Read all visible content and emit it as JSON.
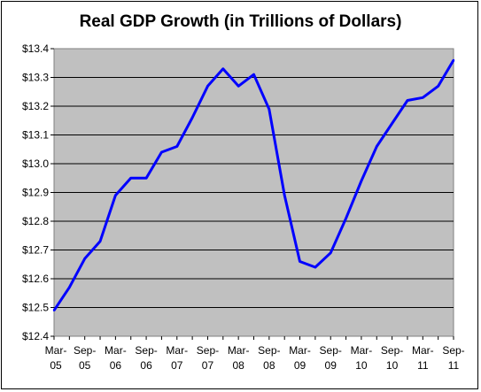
{
  "chart_data": {
    "type": "line",
    "title": "Real GDP Growth (in Trillions of Dollars)",
    "xlabel": "",
    "ylabel": "",
    "ylim": [
      12.4,
      13.4
    ],
    "y_ticks": [
      "$12.4",
      "$12.5",
      "$12.6",
      "$12.7",
      "$12.8",
      "$12.9",
      "$13.0",
      "$13.1",
      "$13.2",
      "$13.3",
      "$13.4"
    ],
    "x_ticks": [
      [
        "Mar-",
        "05"
      ],
      [
        "Sep-",
        "05"
      ],
      [
        "Mar-",
        "06"
      ],
      [
        "Sep-",
        "06"
      ],
      [
        "Mar-",
        "07"
      ],
      [
        "Sep-",
        "07"
      ],
      [
        "Mar-",
        "08"
      ],
      [
        "Sep-",
        "08"
      ],
      [
        "Mar-",
        "09"
      ],
      [
        "Sep-",
        "09"
      ],
      [
        "Mar-",
        "10"
      ],
      [
        "Sep-",
        "10"
      ],
      [
        "Mar-",
        "11"
      ],
      [
        "Sep-",
        "11"
      ]
    ],
    "grid": true,
    "plot_background": "#c0c0c0",
    "line_color": "#0000ff",
    "series": [
      {
        "x": [
          "Mar-05",
          "Jun-05",
          "Sep-05",
          "Dec-05",
          "Mar-06",
          "Jun-06",
          "Sep-06",
          "Dec-06",
          "Mar-07",
          "Jun-07",
          "Sep-07",
          "Dec-07",
          "Mar-08",
          "Jun-08",
          "Sep-08",
          "Dec-08",
          "Mar-09",
          "Jun-09",
          "Sep-09",
          "Dec-09",
          "Mar-10",
          "Jun-10",
          "Sep-10",
          "Dec-10",
          "Mar-11",
          "Jun-11",
          "Sep-11"
        ],
        "values": [
          12.49,
          12.57,
          12.67,
          12.73,
          12.89,
          12.95,
          12.95,
          13.04,
          13.06,
          13.16,
          13.27,
          13.33,
          13.27,
          13.31,
          13.19,
          12.89,
          12.66,
          12.64,
          12.69,
          12.81,
          12.94,
          13.06,
          13.14,
          13.22,
          13.23,
          13.27,
          13.36
        ]
      }
    ]
  }
}
